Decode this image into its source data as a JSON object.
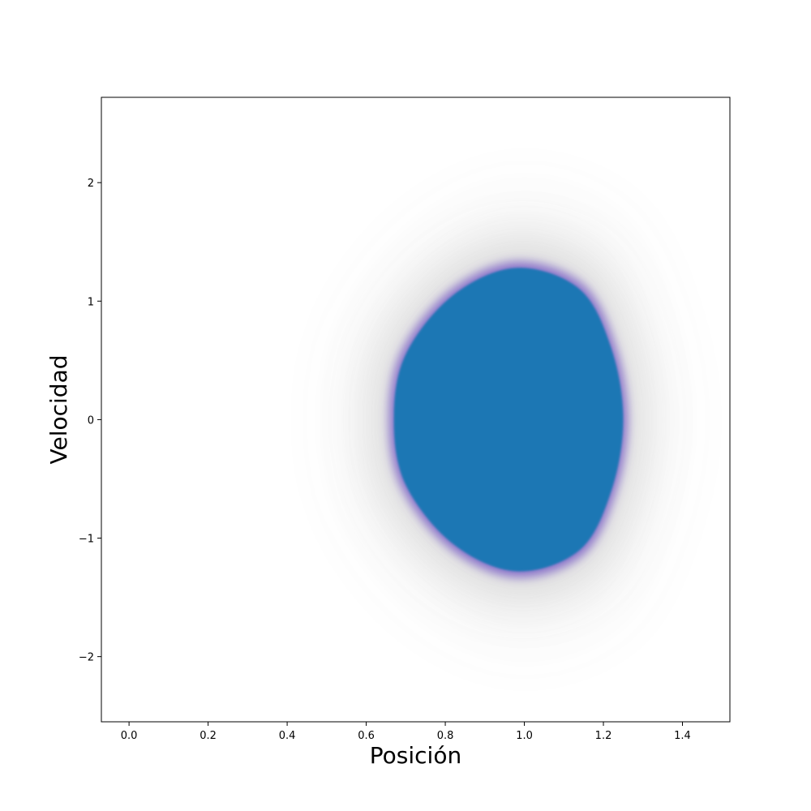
{
  "chart_data": {
    "type": "scatter",
    "title": "",
    "xlabel": "Posición",
    "ylabel": "Velocidad",
    "xlim": [
      -0.07,
      1.52
    ],
    "ylim": [
      -2.55,
      2.72
    ],
    "xticks": [
      0.0,
      0.2,
      0.4,
      0.6,
      0.8,
      1.0,
      1.2,
      1.4
    ],
    "xtick_labels": [
      "0.0",
      "0.2",
      "0.4",
      "0.6",
      "0.8",
      "1.0",
      "1.2",
      "1.4"
    ],
    "yticks": [
      2,
      1,
      0,
      -1,
      -2
    ],
    "ytick_labels": [
      "2",
      "1",
      "0",
      "−1",
      "−2"
    ],
    "grid": false,
    "series": [
      {
        "color": "#1f77b4",
        "description_points": [
          {
            "x": 0.98,
            "y": 1.28
          },
          {
            "x": 1.14,
            "y": 1.1
          },
          {
            "x": 1.22,
            "y": 0.6
          },
          {
            "x": 1.25,
            "y": 0.0
          },
          {
            "x": 1.22,
            "y": -0.6
          },
          {
            "x": 1.14,
            "y": -1.1
          },
          {
            "x": 0.98,
            "y": -1.28
          },
          {
            "x": 0.82,
            "y": -1.05
          },
          {
            "x": 0.7,
            "y": -0.55
          },
          {
            "x": 0.67,
            "y": 0.0
          },
          {
            "x": 0.7,
            "y": 0.55
          },
          {
            "x": 0.82,
            "y": 1.05
          }
        ]
      },
      {
        "color": "#7b5fc8",
        "role": "core-edge"
      },
      {
        "color": "#808080",
        "role": "sparse-halo",
        "extent": {
          "xmin": 0.3,
          "xmax": 1.33,
          "ymin": -1.95,
          "ymax": 2.05
        }
      }
    ]
  }
}
